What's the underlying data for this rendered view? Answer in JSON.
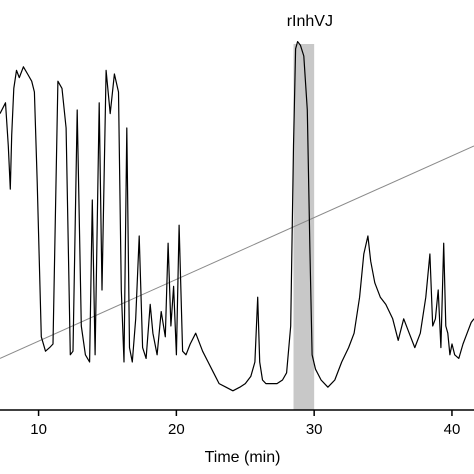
{
  "chart_data": {
    "type": "line",
    "xlabel": "Time (min)",
    "xlim": [
      7.2,
      41.6
    ],
    "ylim": [
      0,
      100
    ],
    "xticks": [
      10,
      20,
      30,
      40
    ],
    "tick_labels": [
      "10",
      "20",
      "30",
      "40"
    ],
    "grid": false,
    "colors": {
      "trace": "#000000",
      "gradient_line": "#8a8a8a",
      "highlight_fill": "#c8c8c8",
      "axis": "#000000"
    },
    "highlight": {
      "label": "rInhVJ",
      "x_range": [
        28.5,
        30.0
      ]
    },
    "series": [
      {
        "x": [
          7.2,
          7.6,
          7.8,
          7.95,
          8.05,
          8.2,
          8.4,
          8.6,
          8.9,
          9.2,
          9.5,
          9.7,
          9.9,
          10.2,
          10.5,
          10.8,
          11.05,
          11.4,
          11.7,
          12.0,
          12.3,
          12.5,
          12.8,
          13.1,
          13.4,
          13.7,
          13.9,
          14.1,
          14.4,
          14.6,
          14.9,
          15.2,
          15.5,
          15.8,
          16.0,
          16.2,
          16.4,
          16.6,
          16.8,
          17.05,
          17.3,
          17.55,
          17.8,
          18.1,
          18.3,
          18.6,
          18.9,
          19.2,
          19.4,
          19.6,
          19.8,
          20.0,
          20.2,
          20.45,
          20.7,
          21.0,
          21.4,
          21.9,
          22.3,
          22.7,
          23.1,
          23.6,
          24.1,
          24.6,
          25.0,
          25.4,
          25.7,
          25.9,
          26.05,
          26.25,
          26.5,
          26.9,
          27.3,
          27.7,
          28.0,
          28.3,
          28.5,
          28.65,
          28.8,
          29.0,
          29.25,
          29.5,
          29.7,
          29.85,
          30.1,
          30.5,
          31.0,
          31.5,
          32.0,
          32.5,
          32.9,
          33.3,
          33.6,
          33.9,
          34.1,
          34.4,
          34.8,
          35.2,
          35.7,
          36.1,
          36.5,
          36.9,
          37.3,
          37.7,
          38.1,
          38.4,
          38.6,
          38.8,
          39.0,
          39.2,
          39.4,
          39.55,
          39.7,
          39.85,
          40.0,
          40.2,
          40.5,
          40.8,
          41.1,
          41.4,
          41.6
        ],
        "y": [
          79,
          82,
          70,
          58,
          73,
          86,
          91,
          89,
          92,
          90,
          88,
          85,
          60,
          17,
          13,
          14,
          15,
          88,
          86,
          75,
          12,
          13,
          80,
          20,
          12,
          10,
          55,
          12,
          82,
          30,
          91,
          79,
          90,
          85,
          30,
          10,
          75,
          14,
          10,
          22,
          45,
          14,
          11,
          26,
          18,
          12,
          24,
          17,
          43,
          20,
          31,
          12,
          48,
          13,
          12,
          15,
          18,
          13,
          10,
          7,
          4,
          3,
          2,
          3,
          4,
          6,
          10,
          28,
          10,
          5,
          4,
          4,
          4,
          5,
          7,
          20,
          70,
          97,
          99,
          98,
          95,
          80,
          40,
          12,
          8,
          5,
          3,
          5,
          10,
          14,
          18,
          28,
          40,
          45,
          38,
          32,
          28,
          26,
          22,
          16,
          22,
          18,
          14,
          18,
          28,
          40,
          20,
          22,
          30,
          14,
          43,
          20,
          18,
          12,
          15,
          12,
          11,
          15,
          18,
          21,
          22
        ]
      },
      {
        "x": [
          7.2,
          41.6
        ],
        "y": [
          11,
          70
        ]
      }
    ]
  }
}
